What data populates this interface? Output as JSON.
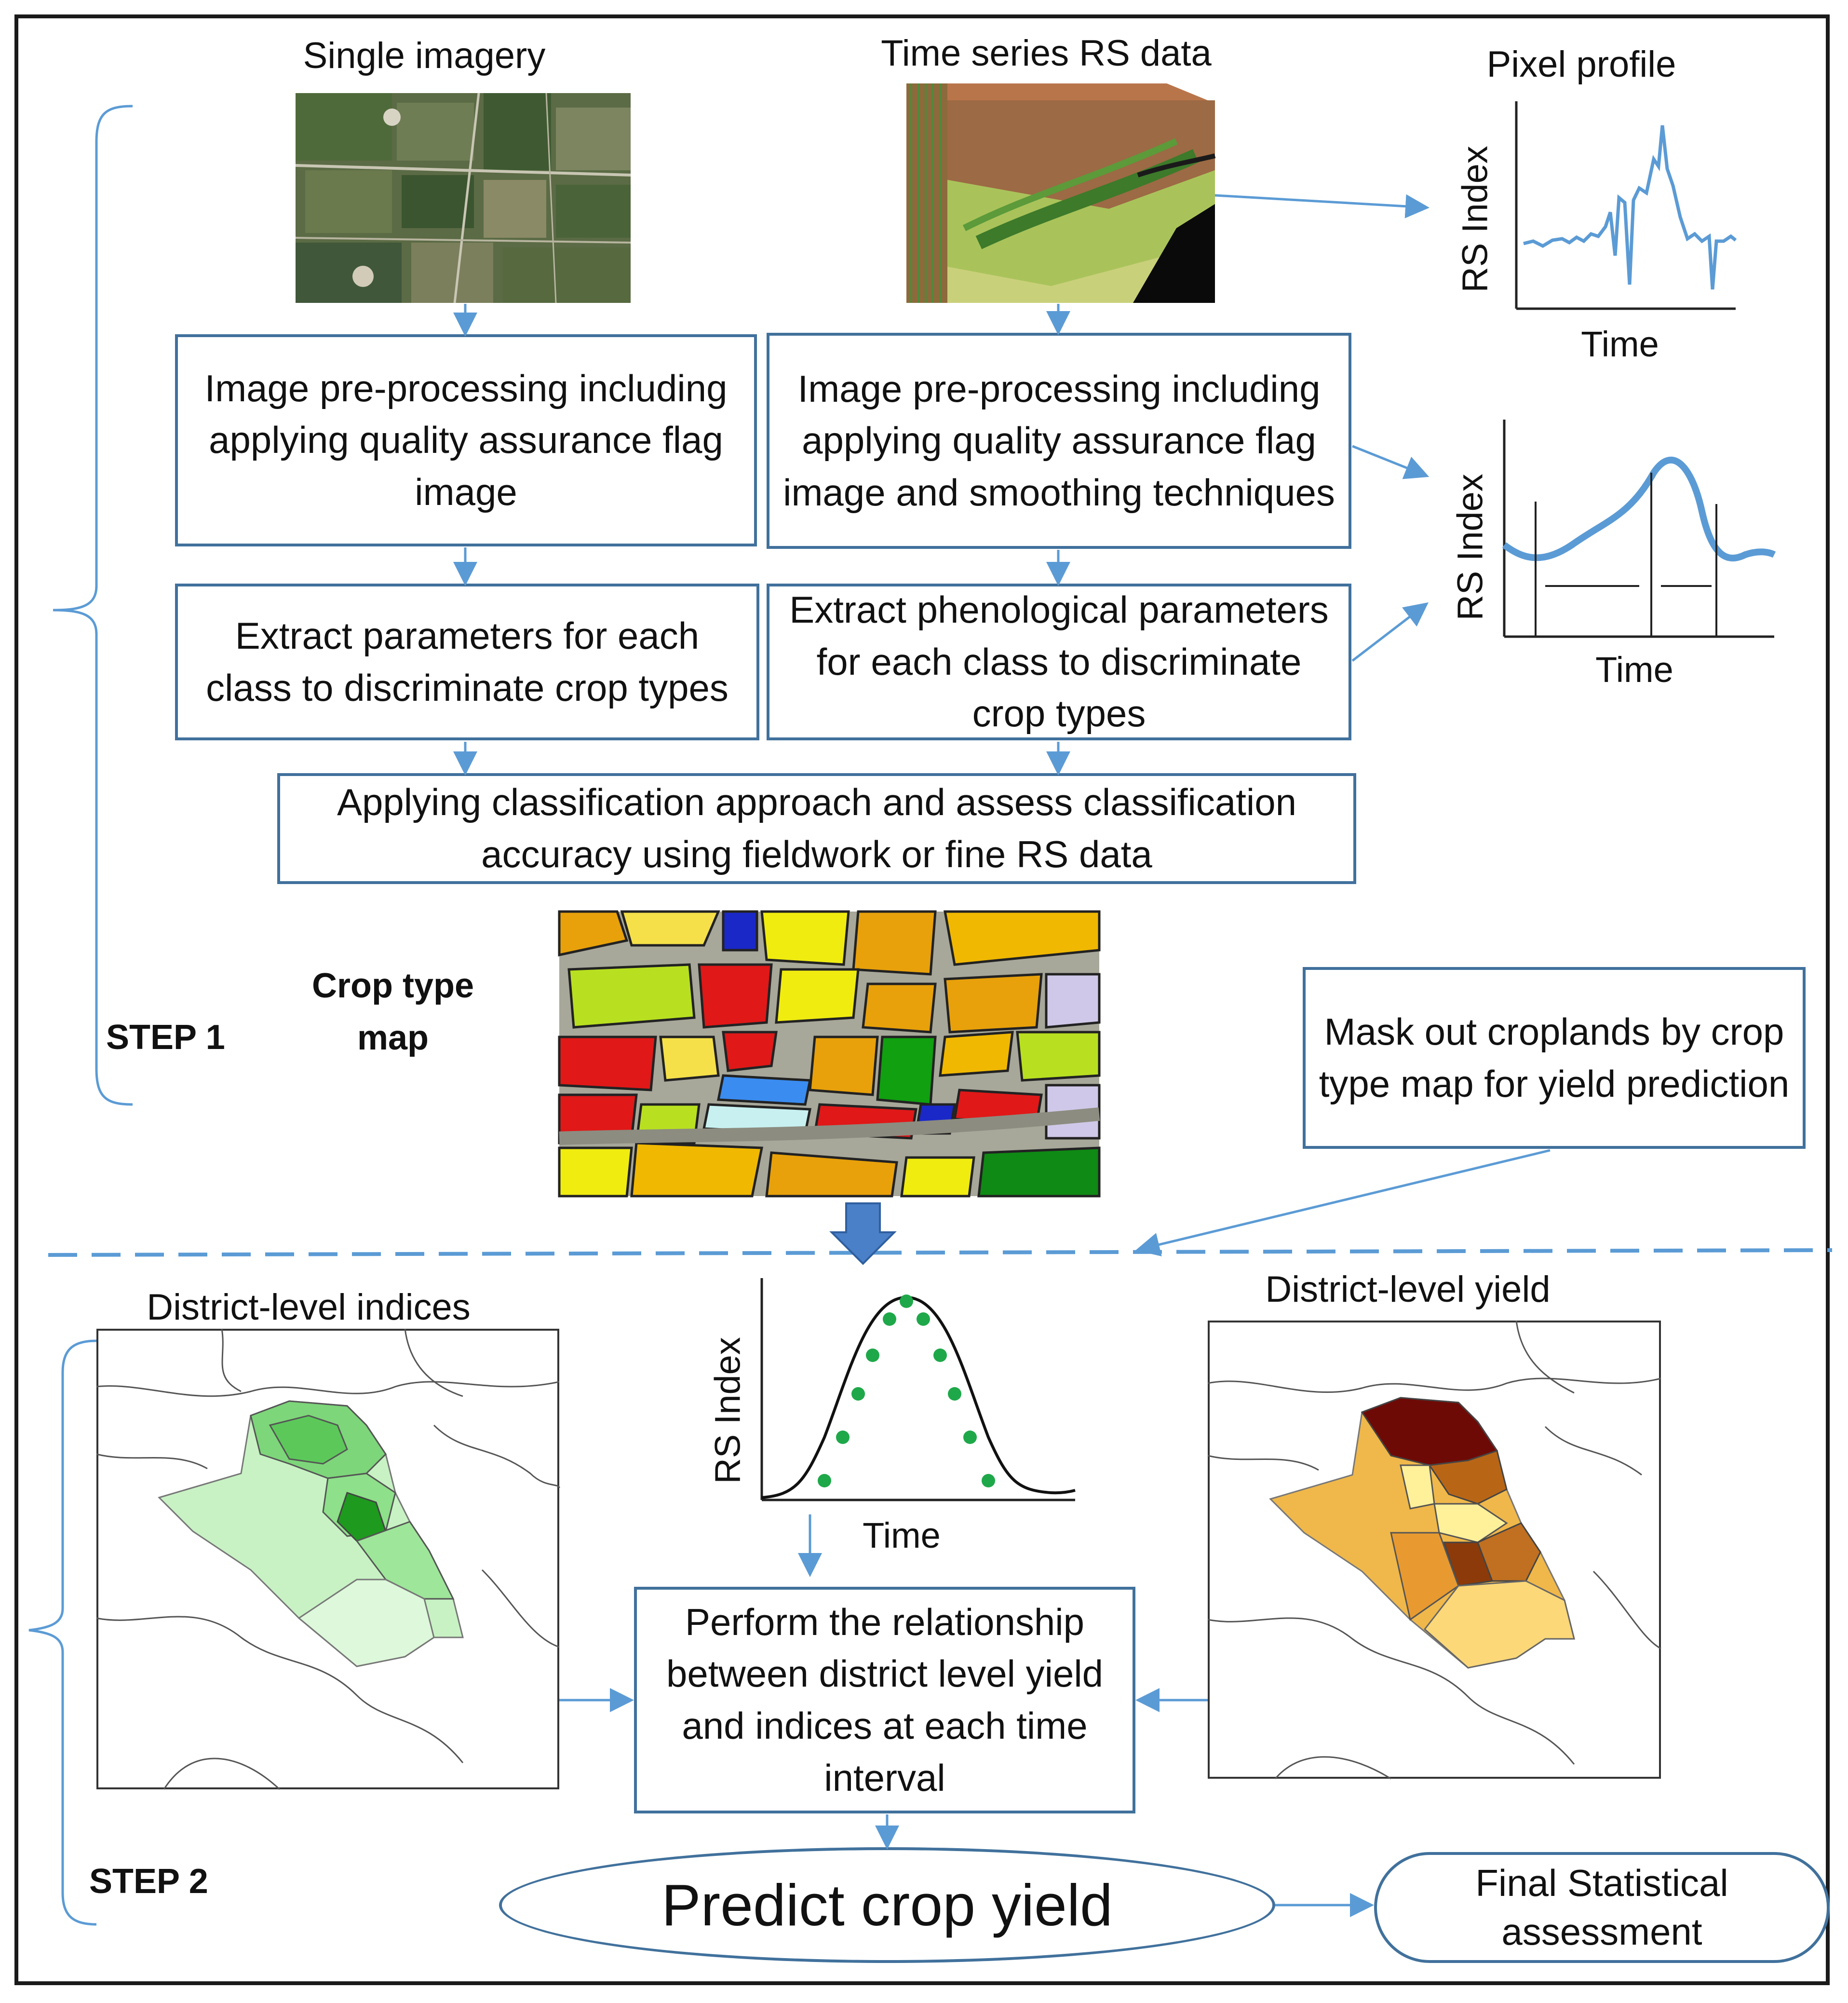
{
  "labels": {
    "single_imagery": "Single imagery",
    "time_series": "Time series RS data",
    "pixel_profile": "Pixel profile",
    "rs_index": "RS Index",
    "time": "Time",
    "crop_type_map": "Crop type map",
    "step1": "STEP 1",
    "step2": "STEP 2",
    "district_indices": "District-level indices",
    "district_yield": "District-level yield"
  },
  "boxes": {
    "preproc_left": "Image pre-processing including applying quality assurance flag image",
    "preproc_right": "Image pre-processing including applying quality assurance flag image and smoothing techniques",
    "extract_left": "Extract parameters for each class to discriminate crop types",
    "extract_right": "Extract phenological parameters for each class to discriminate crop types",
    "classification": "Applying classification approach and assess classification accuracy using fieldwork or fine RS data",
    "mask": "Mask out croplands by crop type map for yield prediction",
    "relationship": "Perform the relationship between district level yield and indices at each time interval",
    "predict": "Predict crop yield",
    "final": "Final Statistical assessment"
  },
  "colors": {
    "box_border": "#41719c",
    "arrow": "#5b9bd5",
    "curve": "#5b9bd5",
    "dots": "#1fa84a"
  }
}
